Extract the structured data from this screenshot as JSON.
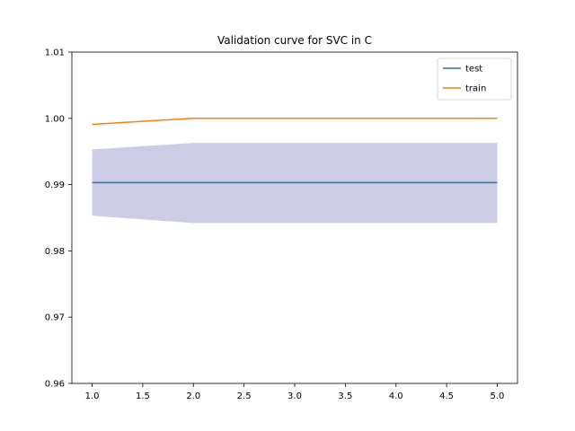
{
  "chart_data": {
    "type": "line",
    "title": "Validation curve for SVC in C",
    "xlabel": "",
    "ylabel": "",
    "x": [
      1,
      2,
      3,
      4,
      5
    ],
    "xlim": [
      0.8,
      5.2
    ],
    "ylim": [
      0.96,
      1.01
    ],
    "xticks": [
      "1.0",
      "1.5",
      "2.0",
      "2.5",
      "3.0",
      "3.5",
      "4.0",
      "4.5",
      "5.0"
    ],
    "yticks": [
      "0.96",
      "0.97",
      "0.98",
      "0.99",
      "1.00",
      "1.01"
    ],
    "grid": false,
    "legend_position": "top-right",
    "series": [
      {
        "name": "test",
        "color": "#1f77b4",
        "values": [
          0.9903,
          0.9903,
          0.9903,
          0.9903,
          0.9903
        ]
      },
      {
        "name": "train",
        "color": "#ff7f0e",
        "values": [
          0.9991,
          1.0,
          1.0,
          1.0,
          1.0
        ]
      }
    ],
    "band": {
      "color": "#cccce6",
      "lower": [
        0.9853,
        0.9842,
        0.9842,
        0.9842,
        0.9842
      ],
      "upper": [
        0.9953,
        0.9963,
        0.9963,
        0.9963,
        0.9963
      ]
    }
  }
}
